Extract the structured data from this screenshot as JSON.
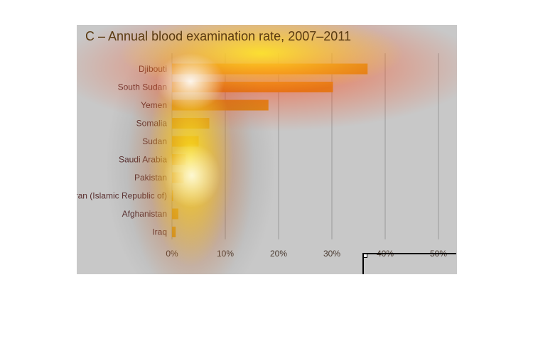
{
  "chart_data": {
    "type": "bar",
    "orientation": "horizontal",
    "title": "C – Annual blood examination rate, 2007–2011",
    "xlabel": "",
    "ylabel": "",
    "categories": [
      "Djibouti",
      "South Sudan",
      "Yemen",
      "Somalia",
      "Sudan",
      "Saudi Arabia",
      "Pakistan",
      "Iran (Islamic Republic of)",
      "Afghanistan",
      "Iraq"
    ],
    "values": [
      36.7,
      30.2,
      18.1,
      7.0,
      5.0,
      2.6,
      2.2,
      0.2,
      1.2,
      0.7
    ],
    "value_unit": "%",
    "xlim": [
      0,
      50
    ],
    "xticks": [
      "0%",
      "10%",
      "20%",
      "30%",
      "40%",
      "50%"
    ],
    "xtick_values": [
      0,
      10,
      20,
      30,
      40,
      50
    ],
    "grid": true,
    "legend": "none",
    "colors": {
      "bar": "#d4941a",
      "grid": "#9a9a9a",
      "panel_background": "#c8c8c8"
    }
  }
}
